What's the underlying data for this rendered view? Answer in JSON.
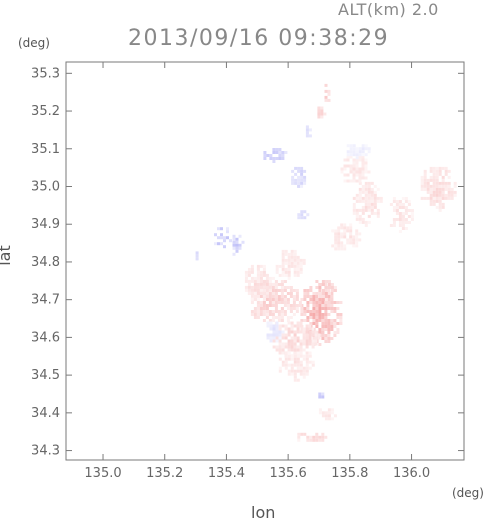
{
  "header": {
    "altitude": "ALT(km) 2.0",
    "timestamp": "2013/09/16 09:38:29"
  },
  "chart_data": {
    "type": "heatmap",
    "xlabel": "lon",
    "ylabel": "lat",
    "x_unit": "(deg)",
    "y_unit": "(deg)",
    "xlim": [
      134.88,
      136.17
    ],
    "ylim": [
      34.275,
      35.33
    ],
    "x_ticks": [
      135.0,
      135.2,
      135.4,
      135.6,
      135.8,
      136.0
    ],
    "x_tick_labels": [
      "135.0",
      "135.2",
      "135.4",
      "135.6",
      "135.8",
      "136.0"
    ],
    "y_ticks": [
      34.3,
      34.4,
      34.5,
      34.6,
      34.7,
      34.8,
      34.9,
      35.0,
      35.1,
      35.2,
      35.3
    ],
    "y_tick_labels": [
      "34.3",
      "34.4",
      "34.5",
      "34.6",
      "34.7",
      "34.8",
      "34.9",
      "35.0",
      "35.1",
      "35.2",
      "35.3"
    ],
    "colors": {
      "positive": "#f07a7a",
      "negative": "#7a7af0"
    },
    "regions": [
      {
        "lon": 135.7,
        "lat": 34.67,
        "rlon": 0.07,
        "rlat": 0.09,
        "sign": "positive",
        "intensity": 0.55
      },
      {
        "lon": 135.55,
        "lat": 34.7,
        "rlon": 0.09,
        "rlat": 0.06,
        "sign": "positive",
        "intensity": 0.35
      },
      {
        "lon": 135.5,
        "lat": 34.75,
        "rlon": 0.05,
        "rlat": 0.05,
        "sign": "positive",
        "intensity": 0.25
      },
      {
        "lon": 135.62,
        "lat": 34.6,
        "rlon": 0.08,
        "rlat": 0.05,
        "sign": "positive",
        "intensity": 0.3
      },
      {
        "lon": 135.62,
        "lat": 34.53,
        "rlon": 0.06,
        "rlat": 0.04,
        "sign": "positive",
        "intensity": 0.22
      },
      {
        "lon": 135.6,
        "lat": 34.8,
        "rlon": 0.05,
        "rlat": 0.04,
        "sign": "positive",
        "intensity": 0.22
      },
      {
        "lon": 135.78,
        "lat": 34.87,
        "rlon": 0.05,
        "rlat": 0.04,
        "sign": "positive",
        "intensity": 0.22
      },
      {
        "lon": 135.85,
        "lat": 34.96,
        "rlon": 0.05,
        "rlat": 0.06,
        "sign": "positive",
        "intensity": 0.25
      },
      {
        "lon": 136.08,
        "lat": 35.0,
        "rlon": 0.06,
        "rlat": 0.06,
        "sign": "positive",
        "intensity": 0.28
      },
      {
        "lon": 135.96,
        "lat": 34.93,
        "rlon": 0.04,
        "rlat": 0.05,
        "sign": "positive",
        "intensity": 0.22
      },
      {
        "lon": 135.81,
        "lat": 35.05,
        "rlon": 0.05,
        "rlat": 0.04,
        "sign": "positive",
        "intensity": 0.2
      },
      {
        "lon": 135.72,
        "lat": 35.25,
        "rlon": 0.012,
        "rlat": 0.03,
        "sign": "positive",
        "intensity": 0.4
      },
      {
        "lon": 135.7,
        "lat": 35.2,
        "rlon": 0.015,
        "rlat": 0.02,
        "sign": "positive",
        "intensity": 0.3
      },
      {
        "lon": 135.67,
        "lat": 34.34,
        "rlon": 0.05,
        "rlat": 0.015,
        "sign": "positive",
        "intensity": 0.3
      },
      {
        "lon": 135.72,
        "lat": 34.4,
        "rlon": 0.03,
        "rlat": 0.02,
        "sign": "positive",
        "intensity": 0.2
      },
      {
        "lon": 135.72,
        "lat": 34.73,
        "rlon": 0.03,
        "rlat": 0.03,
        "sign": "positive",
        "intensity": 0.45
      },
      {
        "lon": 135.55,
        "lat": 35.09,
        "rlon": 0.04,
        "rlat": 0.02,
        "sign": "negative",
        "intensity": 0.45
      },
      {
        "lon": 135.63,
        "lat": 35.03,
        "rlon": 0.03,
        "rlat": 0.03,
        "sign": "negative",
        "intensity": 0.35
      },
      {
        "lon": 135.38,
        "lat": 34.87,
        "rlon": 0.03,
        "rlat": 0.03,
        "sign": "negative",
        "intensity": 0.45
      },
      {
        "lon": 135.43,
        "lat": 34.85,
        "rlon": 0.02,
        "rlat": 0.03,
        "sign": "negative",
        "intensity": 0.4
      },
      {
        "lon": 135.64,
        "lat": 34.93,
        "rlon": 0.02,
        "rlat": 0.015,
        "sign": "negative",
        "intensity": 0.3
      },
      {
        "lon": 135.66,
        "lat": 35.15,
        "rlon": 0.012,
        "rlat": 0.02,
        "sign": "negative",
        "intensity": 0.3
      },
      {
        "lon": 135.82,
        "lat": 35.1,
        "rlon": 0.04,
        "rlat": 0.02,
        "sign": "negative",
        "intensity": 0.15
      },
      {
        "lon": 135.55,
        "lat": 34.62,
        "rlon": 0.03,
        "rlat": 0.03,
        "sign": "negative",
        "intensity": 0.2
      },
      {
        "lon": 135.7,
        "lat": 34.45,
        "rlon": 0.012,
        "rlat": 0.012,
        "sign": "negative",
        "intensity": 0.45
      },
      {
        "lon": 135.3,
        "lat": 34.82,
        "rlon": 0.005,
        "rlat": 0.008,
        "sign": "negative",
        "intensity": 0.4
      }
    ]
  }
}
